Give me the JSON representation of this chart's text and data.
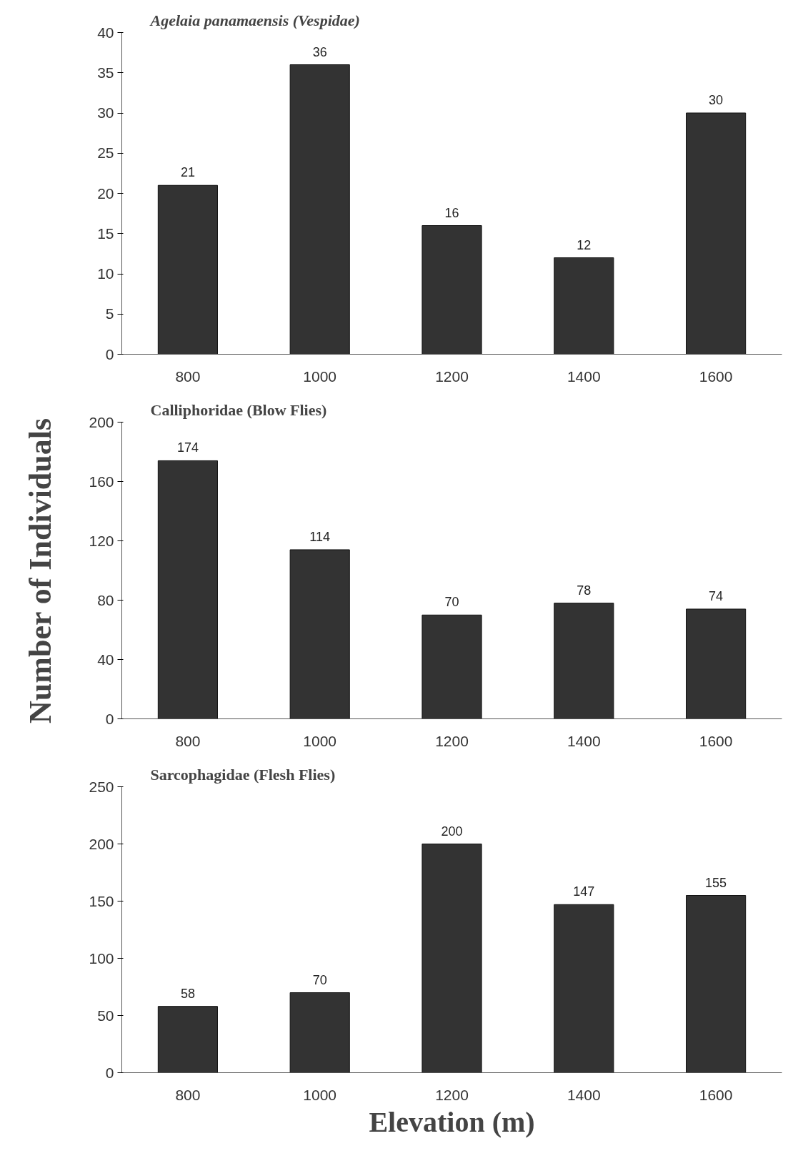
{
  "chart_data": [
    {
      "type": "bar",
      "title": "Agelaia panamaensis (Vespidae)",
      "categories": [
        "800",
        "1000",
        "1200",
        "1400",
        "1600"
      ],
      "values": [
        21,
        36,
        16,
        12,
        30
      ],
      "color": "#333333",
      "ylim": [
        0,
        40
      ],
      "yticks": [
        0,
        5,
        10,
        15,
        20,
        25,
        30,
        35,
        40
      ],
      "data_labels": true
    },
    {
      "type": "bar",
      "title": "Calliphoridae (Blow Flies)",
      "ylabel": "Number of Individuals",
      "categories": [
        "800",
        "1000",
        "1200",
        "1400",
        "1600"
      ],
      "values": [
        174,
        114,
        70,
        78,
        74
      ],
      "color": "#333333",
      "ylim": [
        0,
        200
      ],
      "yticks": [
        0,
        40,
        80,
        120,
        160,
        200
      ],
      "data_labels": true
    },
    {
      "type": "bar",
      "title": "Sarcophagidae (Flesh Flies)",
      "xlabel": "Elevation (m)",
      "categories": [
        "800",
        "1000",
        "1200",
        "1400",
        "1600"
      ],
      "values": [
        58,
        70,
        200,
        147,
        155
      ],
      "color": "#333333",
      "ylim": [
        0,
        250
      ],
      "yticks": [
        0,
        50,
        100,
        150,
        200,
        250
      ],
      "data_labels": true
    }
  ]
}
